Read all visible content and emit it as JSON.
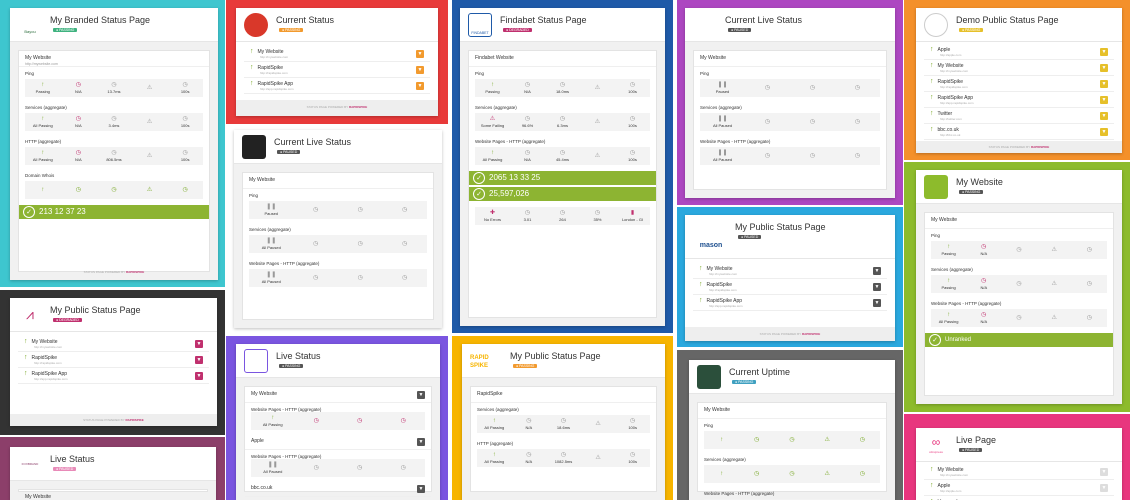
{
  "footer": {
    "powered": "STATUS PAGE POWERED BY",
    "brand": "RAPIDSPIKE",
    "tagline": "Website & Application monitoring"
  },
  "t1": {
    "bg": "#3ec6cf",
    "title": "My Branded Status Page",
    "logo_text": "Bayou",
    "badge": "● PASSING",
    "badge_color": "#3fb27f",
    "site": "My Website",
    "url": "http://mywebsite.com",
    "services": [
      {
        "name": "Ping",
        "stats": [
          {
            "g": "↑",
            "v": "Passing",
            "c": "grn"
          },
          {
            "g": "◷",
            "v": "N/A",
            "c": "red"
          },
          {
            "g": "◷",
            "v": "13.7ms",
            "c": "gry"
          },
          {
            "g": "⚠",
            "v": "",
            "c": "gry"
          },
          {
            "g": "◷",
            "v": "100s",
            "c": "gry"
          }
        ]
      },
      {
        "name": "Services (aggregate)",
        "stats": [
          {
            "g": "↑",
            "v": "All Passing",
            "c": "grn"
          },
          {
            "g": "◷",
            "v": "N/A",
            "c": "red"
          },
          {
            "g": "◷",
            "v": "3.4ms",
            "c": "gry"
          },
          {
            "g": "⚠",
            "v": "",
            "c": "gry"
          },
          {
            "g": "◷",
            "v": "100s",
            "c": "gry"
          }
        ]
      },
      {
        "name": "HTTP (aggregate)",
        "stats": [
          {
            "g": "↑",
            "v": "All Passing",
            "c": "grn"
          },
          {
            "g": "◷",
            "v": "N/A",
            "c": "red"
          },
          {
            "g": "◷",
            "v": "806.5ms",
            "c": "gry"
          },
          {
            "g": "⚠",
            "v": "",
            "c": "gry"
          },
          {
            "g": "◷",
            "v": "100s",
            "c": "gry"
          }
        ]
      },
      {
        "name": "Domain Whois",
        "stats": []
      }
    ],
    "counter": "213  12  37  23"
  },
  "t2": {
    "bg": "#e83a3a",
    "title": "Current Status",
    "badge": "● PASSING",
    "badge_color": "#f29a2e",
    "rows": [
      {
        "n": "My Website",
        "u": "http://mywebsite.com"
      },
      {
        "n": "RapidSpike",
        "u": "http://rapidspike.com"
      },
      {
        "n": "RapidSpike App",
        "u": "http://app.rapidspike.com"
      }
    ],
    "chev": "#f29a2e"
  },
  "t3": {
    "bg": "#1f5aa8",
    "title": "Findabet Status Page",
    "logo_text": "FINDABET",
    "badge": "● DEGRADED",
    "badge_color": "#c0306e",
    "site": "Findabet Website",
    "services": [
      {
        "name": "Ping",
        "stats": [
          {
            "g": "↑",
            "v": "Passing",
            "c": "grn"
          },
          {
            "g": "◷",
            "v": "N/A",
            "c": "gry"
          },
          {
            "g": "◷",
            "v": "18.0ms",
            "c": "gry"
          },
          {
            "g": "⚠",
            "v": "",
            "c": "gry"
          },
          {
            "g": "◷",
            "v": "100s",
            "c": "gry"
          }
        ]
      },
      {
        "name": "Services (aggregate)",
        "stats": [
          {
            "g": "⚠",
            "v": "Some Failing",
            "c": "red"
          },
          {
            "g": "◷",
            "v": "96.6%",
            "c": "gry"
          },
          {
            "g": "◷",
            "v": "6.3ms",
            "c": "gry"
          },
          {
            "g": "⚠",
            "v": "",
            "c": "gry"
          },
          {
            "g": "◷",
            "v": "100s",
            "c": "gry"
          }
        ]
      },
      {
        "name": "Website Pages - HTTP (aggregate)",
        "stats": [
          {
            "g": "↑",
            "v": "All Passing",
            "c": "grn"
          },
          {
            "g": "◷",
            "v": "N/A",
            "c": "gry"
          },
          {
            "g": "◷",
            "v": "45.4ms",
            "c": "gry"
          },
          {
            "g": "⚠",
            "v": "",
            "c": "gry"
          },
          {
            "g": "◷",
            "v": "100s",
            "c": "gry"
          }
        ]
      }
    ],
    "counter": "2065  13  33  25",
    "visits": "25,597,026",
    "lookups": [
      {
        "g": "✚",
        "v": "No Errors",
        "c": "red"
      },
      {
        "g": "◷",
        "v": "3.01",
        "c": "gry"
      },
      {
        "g": "◷",
        "v": "264",
        "c": "gry"
      },
      {
        "g": "◷",
        "v": "35%",
        "c": "gry"
      },
      {
        "g": "▮",
        "v": "London - GI",
        "c": "red"
      }
    ]
  },
  "t4": {
    "bg": "#ad47c1",
    "title": "Current Live Status",
    "badge": "● PAUSED",
    "badge_color": "#555",
    "site": "My Website",
    "services": [
      {
        "name": "Ping",
        "v": "Paused"
      },
      {
        "name": "Services (aggregate)",
        "v": "All Paused"
      },
      {
        "name": "Website Pages - HTTP (aggregate)",
        "v": "All Paused"
      }
    ]
  },
  "t5": {
    "bg": "#f4902a",
    "title": "Demo Public Status Page",
    "badge": "● PASSING",
    "badge_color": "#e6c02a",
    "rows": [
      {
        "n": "Apple",
        "u": "http://apple.com"
      },
      {
        "n": "My Website",
        "u": "http://mywebsite.com"
      },
      {
        "n": "RapidSpike",
        "u": "http://rapidspike.com"
      },
      {
        "n": "RapidSpike App",
        "u": "http://app.rapidspike.com"
      },
      {
        "n": "Twitter",
        "u": "http://twitter.com"
      },
      {
        "n": "bbc.co.uk",
        "u": "http://bbc.co.uk"
      }
    ],
    "chev": "#e6c02a"
  },
  "t6": {
    "bg": "#ffffff",
    "title": "Current Live Status",
    "badge": "● PAUSED",
    "badge_color": "#555",
    "site": "My Website",
    "services": [
      {
        "name": "Ping",
        "v": "Paused"
      },
      {
        "name": "Services (aggregate)",
        "v": "All Paused"
      },
      {
        "name": "Website Pages - HTTP (aggregate)",
        "v": "All Paused"
      }
    ]
  },
  "t7": {
    "bg": "#8dbb2c",
    "title": "My Website",
    "badge": "● PASSING",
    "badge_color": "#555",
    "site": "My Website",
    "services": [
      {
        "name": "Ping",
        "stats": [
          {
            "g": "↑",
            "v": "Passing",
            "c": "grn"
          },
          {
            "g": "◷",
            "v": "N/A",
            "c": "red"
          },
          {
            "g": "◷",
            "v": "",
            "c": "gry"
          },
          {
            "g": "⚠",
            "v": "",
            "c": "gry"
          },
          {
            "g": "◷",
            "v": "",
            "c": "gry"
          }
        ]
      },
      {
        "name": "Services (aggregate)",
        "stats": [
          {
            "g": "↑",
            "v": "Passing",
            "c": "grn"
          },
          {
            "g": "◷",
            "v": "N/A",
            "c": "red"
          },
          {
            "g": "◷",
            "v": "",
            "c": "gry"
          },
          {
            "g": "⚠",
            "v": "",
            "c": "gry"
          },
          {
            "g": "◷",
            "v": "",
            "c": "gry"
          }
        ]
      },
      {
        "name": "Website Pages - HTTP (aggregate)",
        "stats": [
          {
            "g": "↑",
            "v": "All Passing",
            "c": "grn"
          },
          {
            "g": "◷",
            "v": "N/A",
            "c": "red"
          },
          {
            "g": "◷",
            "v": "",
            "c": "gry"
          },
          {
            "g": "⚠",
            "v": "",
            "c": "gry"
          },
          {
            "g": "◷",
            "v": "",
            "c": "gry"
          }
        ]
      }
    ],
    "rank": "Unranked"
  },
  "t8": {
    "bg": "#333333",
    "title": "My Public Status Page",
    "badge": "● DEGRADED",
    "badge_color": "#c0306e",
    "rows": [
      {
        "n": "My Website",
        "u": "http://mywebsite.com"
      },
      {
        "n": "RapidSpike",
        "u": "http://rapidspike.com"
      },
      {
        "n": "RapidSpike App",
        "u": "http://app.rapidspike.com"
      }
    ],
    "chev": "#c0306e"
  },
  "t9": {
    "bg": "#2aa8de",
    "title": "My Public Status Page",
    "logo_text": "mason",
    "badge": "● PAUSED",
    "badge_color": "#555",
    "rows": [
      {
        "n": "My Website",
        "u": "http://mywebsite.com"
      },
      {
        "n": "RapidSpike",
        "u": "http://rapidspike.com"
      },
      {
        "n": "RapidSpike App",
        "u": "http://app.rapidspike.com"
      }
    ],
    "chev": "#555"
  },
  "t10": {
    "bg": "#7a55e0",
    "title": "Live Status",
    "badge": "● PASSING",
    "badge_color": "#555",
    "sites": [
      {
        "n": "My Website"
      },
      {
        "n": "Apple"
      },
      {
        "n": "bbc.co.uk"
      }
    ],
    "services": [
      {
        "name": "Website Pages - HTTP (aggregate)",
        "v": "All Passing",
        "c": "grn"
      },
      {
        "name": "Website Pages - HTTP (aggregate)",
        "v": "All Paused",
        "c": "gry"
      }
    ]
  },
  "t11": {
    "bg": "#f7b500",
    "title": "My Public Status Page",
    "logo_text": "RAPID SPIKE",
    "badge": "● PASSING",
    "badge_color": "#f29a2e",
    "site": "RapidSpike",
    "services": [
      {
        "name": "Services (aggregate)",
        "stats": [
          {
            "g": "↑",
            "v": "All Passing",
            "c": "grn"
          },
          {
            "g": "◷",
            "v": "N/A",
            "c": "gry"
          },
          {
            "g": "◷",
            "v": "18.6ms",
            "c": "gry"
          },
          {
            "g": "⚠",
            "v": "",
            "c": "gry"
          },
          {
            "g": "◷",
            "v": "100s",
            "c": "gry"
          }
        ]
      },
      {
        "name": "HTTP (aggregate)",
        "stats": [
          {
            "g": "↑",
            "v": "All Passing",
            "c": "grn"
          },
          {
            "g": "◷",
            "v": "N/A",
            "c": "gry"
          },
          {
            "g": "◷",
            "v": "1082.5ms",
            "c": "gry"
          },
          {
            "g": "⚠",
            "v": "",
            "c": "gry"
          },
          {
            "g": "◷",
            "v": "100s",
            "c": "gry"
          }
        ]
      }
    ]
  },
  "t12": {
    "bg": "#666666",
    "title": "Current Uptime",
    "badge": "● PASSING",
    "badge_color": "#3fa0c0",
    "site": "My Website",
    "services": [
      {
        "name": "Ping"
      },
      {
        "name": "Services (aggregate)"
      },
      {
        "name": "Website Pages - HTTP (aggregate)"
      }
    ]
  },
  "t13": {
    "bg": "#e8367e",
    "title": "Live Page",
    "logo_text": "cdnxpress",
    "badge": "● PAUSED",
    "badge_color": "#555",
    "rows": [
      {
        "n": "My Website",
        "u": "http://mywebsite.com"
      },
      {
        "n": "Apple",
        "u": "http://apple.com"
      },
      {
        "n": "bbc.co.uk",
        "u": "http://bbc.co.uk"
      }
    ],
    "chev": "#ddd"
  },
  "t14": {
    "bg": "#8c3f6a",
    "title": "Live Status",
    "logo_text": "FOXBRAND",
    "badge": "● PAUSED",
    "badge_color": "#e88ab8",
    "site": "My Website"
  }
}
